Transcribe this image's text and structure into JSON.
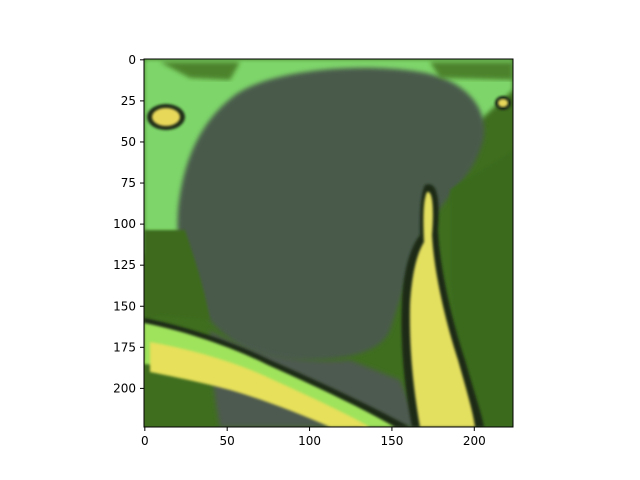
{
  "chart_data": {
    "type": "heatmap",
    "title": "",
    "xlabel": "",
    "ylabel": "",
    "xlim": [
      0,
      224
    ],
    "ylim": [
      224,
      0
    ],
    "y_axis_inverted": true,
    "x_ticks": [
      0,
      50,
      100,
      150,
      200
    ],
    "y_ticks": [
      0,
      25,
      50,
      75,
      100,
      125,
      150,
      175,
      200
    ],
    "grid": false,
    "legend": "none",
    "image_description_regions": {
      "background_green": "#3f6e1f",
      "bright_green": "#7edc6a",
      "dark_gray": "#4a5a4c",
      "yellow": "#e8e35a",
      "dark_outline": "#1f2a18"
    }
  },
  "colors": {
    "axis": "#000000",
    "background": "#ffffff"
  }
}
